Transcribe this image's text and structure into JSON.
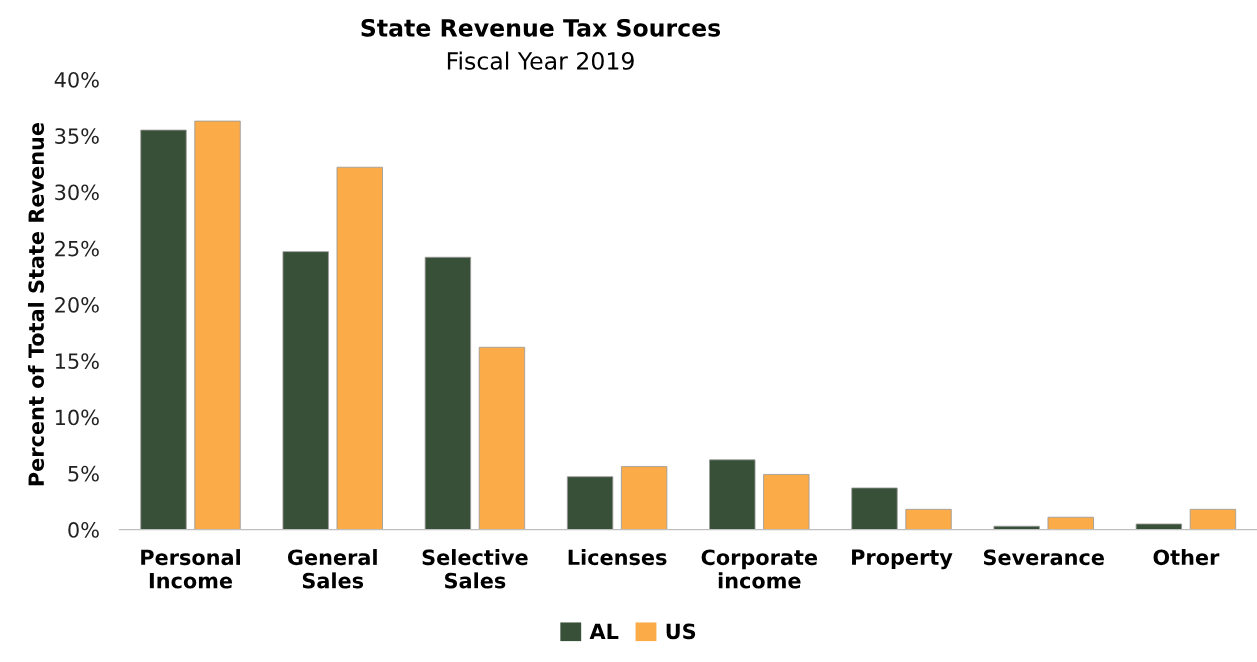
{
  "chart_data": {
    "type": "bar",
    "title": "State Revenue Tax Sources",
    "subtitle": "Fiscal Year 2019",
    "ylabel": "Percent of Total State Revenue",
    "categories": [
      "Personal\nIncome",
      "General\nSales",
      "Selective\nSales",
      "Licenses",
      "Corporate\nincome",
      "Property",
      "Severance",
      "Other"
    ],
    "series": [
      {
        "name": "AL",
        "color": "#375037",
        "values": [
          35.5,
          24.7,
          24.2,
          4.7,
          6.2,
          3.7,
          0.3,
          0.5
        ]
      },
      {
        "name": "US",
        "color": "#fbab47",
        "values": [
          36.3,
          32.2,
          16.2,
          5.6,
          4.9,
          1.8,
          1.1,
          1.8
        ]
      }
    ],
    "ylim": [
      0,
      40
    ],
    "yticks": [
      {
        "value": 0,
        "label": "0%"
      },
      {
        "value": 5,
        "label": "5%"
      },
      {
        "value": 10,
        "label": "10%"
      },
      {
        "value": 15,
        "label": "15%"
      },
      {
        "value": 20,
        "label": "20%"
      },
      {
        "value": 25,
        "label": "25%"
      },
      {
        "value": 30,
        "label": "30%"
      },
      {
        "value": 35,
        "label": "35%"
      },
      {
        "value": 40,
        "label": "40%"
      }
    ],
    "grid": false,
    "legend": "bottom"
  }
}
